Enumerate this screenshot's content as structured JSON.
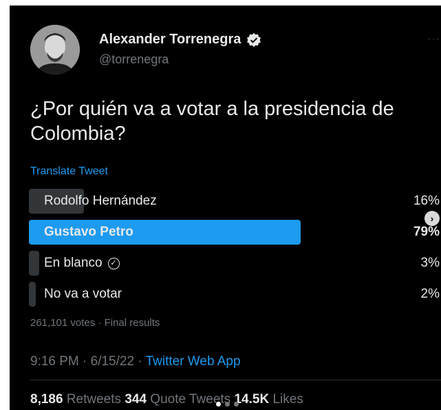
{
  "author": {
    "name": "Alexander Torrenegra",
    "handle": "@torrenegra",
    "verified_icon": "verified-badge-icon"
  },
  "more_label": "···",
  "tweet": {
    "question": "¿Por quién va a votar a la presidencia de Colombia?",
    "translate_label": "Translate Tweet"
  },
  "poll": {
    "options": [
      {
        "label": "Rodolfo Hernández",
        "percent_label": "16%",
        "percent": 16,
        "winner": false,
        "has_check": false
      },
      {
        "label": "Gustavo Petro",
        "percent_label": "79%",
        "percent": 79,
        "winner": true,
        "has_check": false
      },
      {
        "label": "En blanco",
        "percent_label": "3%",
        "percent": 3,
        "winner": false,
        "has_check": true
      },
      {
        "label": "No va a votar",
        "percent_label": "2%",
        "percent": 2,
        "winner": false,
        "has_check": false
      }
    ],
    "summary": "261,101 votes · Final results"
  },
  "meta": {
    "time": "9:16 PM · 6/15/22 · ",
    "app": "Twitter Web App"
  },
  "stats": {
    "retweets_count": "8,186",
    "retweets_label": " Retweets ",
    "quotes_count": "344",
    "quotes_label": " Quote Tweets ",
    "likes_count": "14.5K",
    "likes_label": " Likes"
  },
  "colors": {
    "accent": "#1d9bf0",
    "loser_bar": "#333639",
    "text": "#e7e9ea",
    "muted": "#71767b"
  }
}
